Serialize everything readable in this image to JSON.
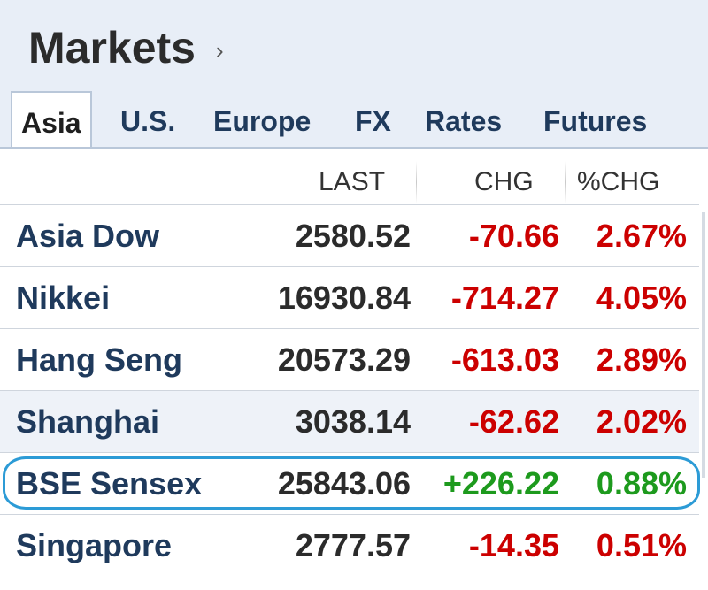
{
  "header": {
    "title": "Markets",
    "chevron": "›"
  },
  "tabs": [
    "Asia",
    "U.S.",
    "Europe",
    "FX",
    "Rates",
    "Futures"
  ],
  "columns": {
    "last": "LAST",
    "chg": "CHG",
    "pct": "%CHG"
  },
  "rows": [
    {
      "name": "Asia Dow",
      "last": "2580.52",
      "chg": "-70.66",
      "pct": "2.67%",
      "direction": "down"
    },
    {
      "name": "Nikkei",
      "last": "16930.84",
      "chg": "-714.27",
      "pct": "4.05%",
      "direction": "down"
    },
    {
      "name": "Hang Seng",
      "last": "20573.29",
      "chg": "-613.03",
      "pct": "2.89%",
      "direction": "down"
    },
    {
      "name": "Shanghai",
      "last": "3038.14",
      "chg": "-62.62",
      "pct": "2.02%",
      "direction": "down"
    },
    {
      "name": "BSE Sensex",
      "last": "25843.06",
      "chg": "+226.22",
      "pct": "0.88%",
      "direction": "up"
    },
    {
      "name": "Singapore",
      "last": "2777.57",
      "chg": "-14.35",
      "pct": "0.51%",
      "direction": "down"
    }
  ],
  "colors": {
    "up": "#1d9a1d",
    "down": "#cc0000",
    "highlight": "#2c9bd6"
  },
  "highlighted_row": "BSE Sensex"
}
